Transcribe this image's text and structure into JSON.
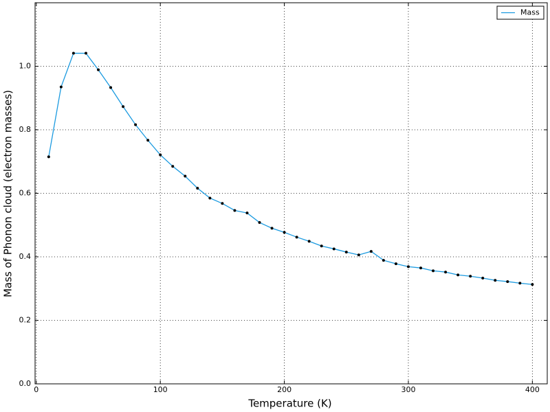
{
  "chart_data": {
    "type": "line",
    "xlabel": "Temperature (K)",
    "ylabel": "Mass of Phonon cloud (electron masses)",
    "x": [
      10,
      20,
      30,
      40,
      50,
      60,
      70,
      80,
      90,
      100,
      110,
      120,
      130,
      140,
      150,
      160,
      170,
      180,
      190,
      200,
      210,
      220,
      230,
      240,
      250,
      260,
      270,
      280,
      290,
      300,
      310,
      320,
      330,
      340,
      350,
      360,
      370,
      380,
      390,
      400
    ],
    "series": [
      {
        "name": "Mass",
        "color": "#1a9ae0",
        "marker_color": "#000000",
        "values": [
          0.715,
          0.935,
          1.041,
          1.041,
          0.989,
          0.933,
          0.873,
          0.816,
          0.767,
          0.721,
          0.685,
          0.654,
          0.616,
          0.585,
          0.568,
          0.546,
          0.538,
          0.508,
          0.49,
          0.477,
          0.462,
          0.449,
          0.434,
          0.425,
          0.415,
          0.406,
          0.417,
          0.389,
          0.378,
          0.369,
          0.365,
          0.356,
          0.352,
          0.343,
          0.339,
          0.333,
          0.326,
          0.322,
          0.317,
          0.313
        ]
      }
    ],
    "xlim": [
      -1,
      412
    ],
    "xticks": [
      0,
      100,
      200,
      300,
      400
    ],
    "ylim": [
      0,
      1.2
    ],
    "yticks": [
      {
        "value": 0,
        "label": "0.0"
      },
      0.2,
      0.4,
      0.6,
      0.8,
      {
        "value": 1,
        "label": "1.0"
      }
    ],
    "grid": true,
    "legend": "upper right"
  }
}
